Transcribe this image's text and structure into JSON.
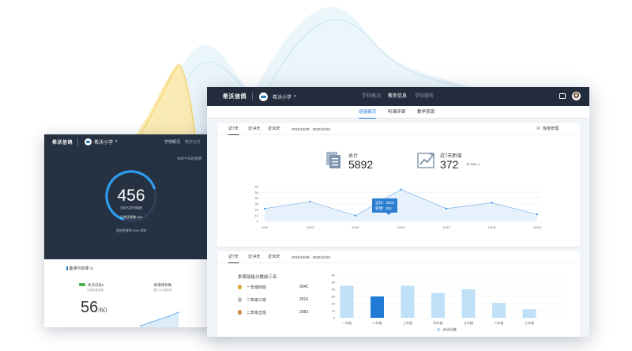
{
  "left_window": {
    "brand": "希沃信鸽",
    "school": "希沃小学",
    "nav": [
      "学校概况",
      "教务信息"
    ],
    "subtitle": "本校今日班级圈",
    "gauge": {
      "value": "456",
      "caption": "当前已发布班级圈",
      "sub": "日常活跃数 420",
      "foot": "家园共育率  90%  学校",
      "fraction": 0.72
    },
    "bottom": {
      "title": "备课与授课 ⊙",
      "card_label": "希沃白板5",
      "card_sub": "未课中覆盖课",
      "big_value": "56",
      "big_den": "/60",
      "right_title": "新增课件数",
      "right_sub": "累计123课件数"
    }
  },
  "main_window": {
    "brand": "希沃信鸽",
    "school": "希沃小学",
    "nav": [
      {
        "label": "学校概况",
        "active": false
      },
      {
        "label": "教务信息",
        "active": true
      },
      {
        "label": "学校服务",
        "active": false
      }
    ],
    "subnav": [
      {
        "label": "班级概况",
        "active": true
      },
      {
        "label": "听课评课",
        "active": false
      },
      {
        "label": "教学资源",
        "active": false
      }
    ]
  },
  "card1": {
    "ranges": [
      {
        "label": "近7天",
        "active": true
      },
      {
        "label": "近14天",
        "active": false
      },
      {
        "label": "近30天",
        "active": false
      }
    ],
    "date_range": "2016/10/09 - 2016/10/15",
    "manage": "班级管理",
    "total_label": "总计",
    "total_value": "5892",
    "growth_label": "近7天新增",
    "growth_value": "372",
    "growth_pct": "13.33%",
    "tooltip_line1": "当日：3029",
    "tooltip_line2": "新增：281"
  },
  "card2": {
    "ranges": [
      {
        "label": "近7天",
        "active": true
      },
      {
        "label": "近14天",
        "active": false
      },
      {
        "label": "近30天",
        "active": false
      }
    ],
    "date_range": "2016/10/09 - 2016/10/15",
    "rank_title": "本周班级分数前三名",
    "ranks": [
      {
        "name": "一年级四班",
        "score": "3041",
        "medal_color": "#e0a93a"
      },
      {
        "name": "二年级三班",
        "score": "2516",
        "medal_color": "#b7bcc4"
      },
      {
        "name": "二年级五班",
        "score": "2083",
        "medal_color": "#c9894a"
      }
    ]
  },
  "chart_data": [
    {
      "type": "area",
      "categories": [
        "10/9",
        "10/10",
        "10/11",
        "10/12",
        "10/13",
        "10/14",
        "10/15"
      ],
      "series": [
        {
          "values": [
            22,
            34,
            10,
            55,
            22,
            32,
            12
          ]
        }
      ],
      "ylim": [
        0,
        60
      ],
      "yticks": [
        0,
        10,
        20,
        30,
        40,
        50,
        60
      ],
      "grid": true,
      "color": "#3a8ee6"
    },
    {
      "type": "bar",
      "categories": [
        "一年级",
        "二年级",
        "三年级",
        "四年级",
        "五年级",
        "六年级",
        "七年级"
      ],
      "series": [
        {
          "name": "点评分数",
          "values": [
            45,
            30,
            45,
            35,
            40,
            21,
            12
          ]
        }
      ],
      "highlight_index": 1,
      "ylim": [
        0,
        60
      ],
      "yticks": [
        0,
        10,
        20,
        30,
        40,
        50,
        60
      ],
      "legend": "bottom-center",
      "color": "#bfe0f7",
      "highlight_color": "#1f7bd6"
    }
  ]
}
